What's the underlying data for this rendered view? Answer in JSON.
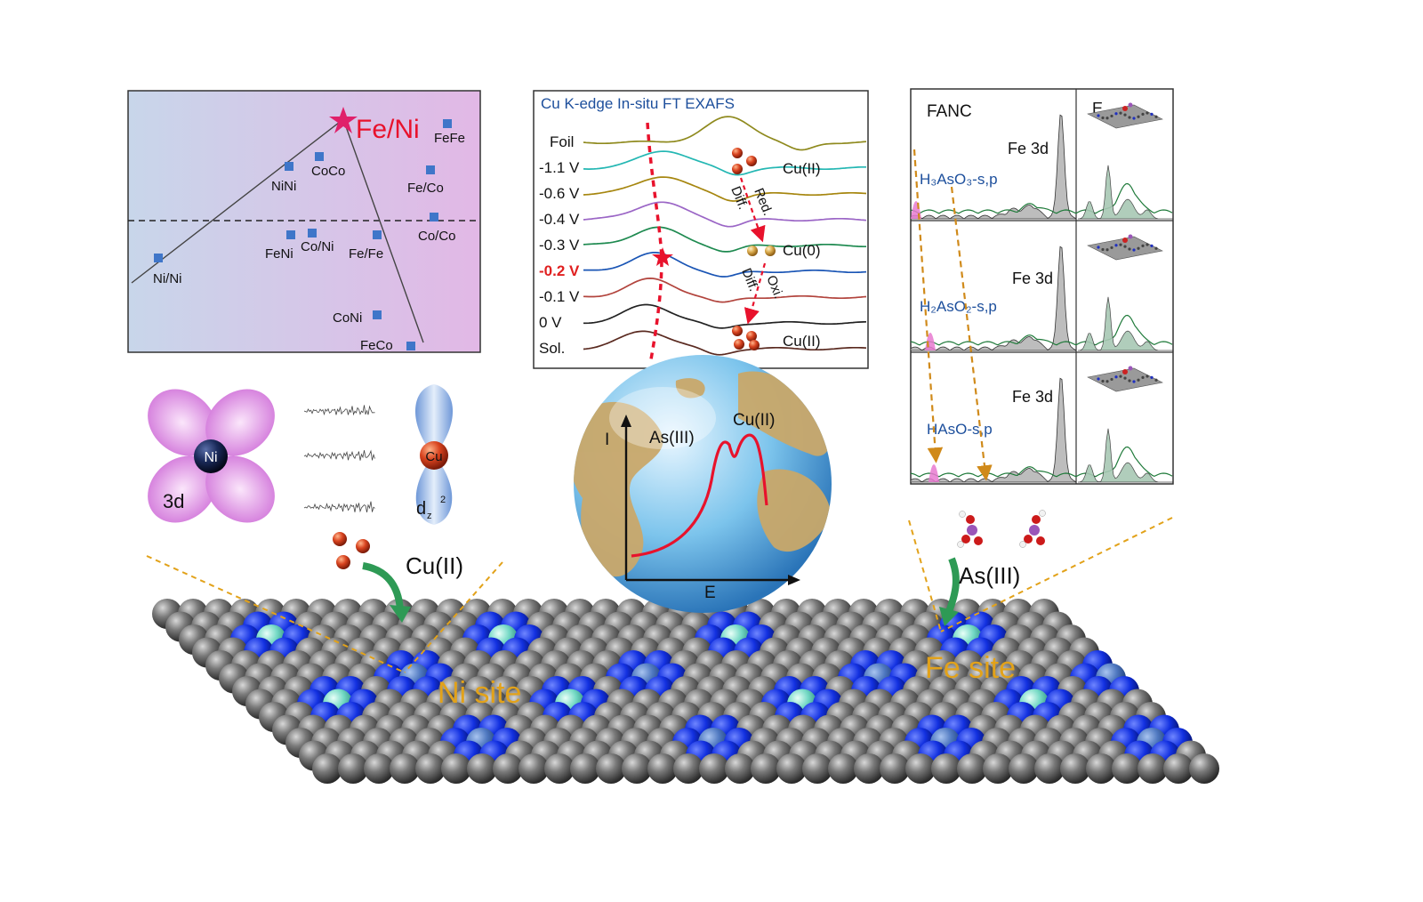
{
  "volcano": {
    "highlight_label": "Fe/Ni",
    "points": [
      {
        "label": "FeFe"
      },
      {
        "label": "NiNi"
      },
      {
        "label": "CoCo"
      },
      {
        "label": "Fe/Co"
      },
      {
        "label": "Co/Co"
      },
      {
        "label": "FeNi"
      },
      {
        "label": "Co/Ni"
      },
      {
        "label": "Fe/Fe"
      },
      {
        "label": "Ni/Ni"
      },
      {
        "label": "CoNi"
      },
      {
        "label": "FeCo"
      }
    ]
  },
  "exafs": {
    "title": "Cu K-edge In-situ FT EXAFS",
    "curves": [
      {
        "label": "Foil",
        "color": "#8f8a1e"
      },
      {
        "label": "-1.1 V",
        "color": "#24b7b3"
      },
      {
        "label": "-0.6 V",
        "color": "#a6860f"
      },
      {
        "label": "-0.4 V",
        "color": "#9b66c6"
      },
      {
        "label": "-0.3 V",
        "color": "#1e8a50"
      },
      {
        "label": "-0.2 V",
        "color": "#1a55b5"
      },
      {
        "label": "-0.1 V",
        "color": "#b2443d"
      },
      {
        "label": "0 V",
        "color": "#222222"
      },
      {
        "label": "Sol.",
        "color": "#5a2a20"
      }
    ],
    "highlight_label_color": "#e02020",
    "annotations": {
      "cu2_top": "Cu(II)",
      "cu0": "Cu(0)",
      "cu2_bottom": "Cu(II)",
      "red": "Red.",
      "diff_top": "Diff.",
      "oxi": "Oxi.",
      "diff_bottom": "Diff."
    }
  },
  "fanc": {
    "left_header": "FANC",
    "right_header": "E",
    "right_header_sub": "f",
    "panels": [
      {
        "peak_label": "Fe 3d",
        "species": "H₃AsO₃-s,p"
      },
      {
        "peak_label": "Fe 3d",
        "species": "H₂AsO₂-s,p"
      },
      {
        "peak_label": "Fe 3d",
        "species": "HAsO-s,p"
      }
    ]
  },
  "orbitals": {
    "ni_label": "Ni",
    "ni_orbital": "3d",
    "cu_label": "Cu",
    "cu_orbital": "d",
    "cu_orbital_sub": "z",
    "cu_orbital_sup": "2"
  },
  "globe_plot": {
    "y_axis": "I",
    "x_axis": "E",
    "peak1": "As(III)",
    "peak2": "Cu(II)"
  },
  "surface": {
    "cu_label": "Cu(II)",
    "as_label": "As(III)",
    "ni_site": "Ni site",
    "fe_site": "Fe site"
  },
  "colors": {
    "accent_red": "#e8122c",
    "highlight_pink": "#e0206a",
    "site_gold": "#e2a21a",
    "arrow_green": "#2e9a55",
    "nitrogen_blue": "#0b1fd6",
    "carbon_gray": "#5a5a5a"
  }
}
